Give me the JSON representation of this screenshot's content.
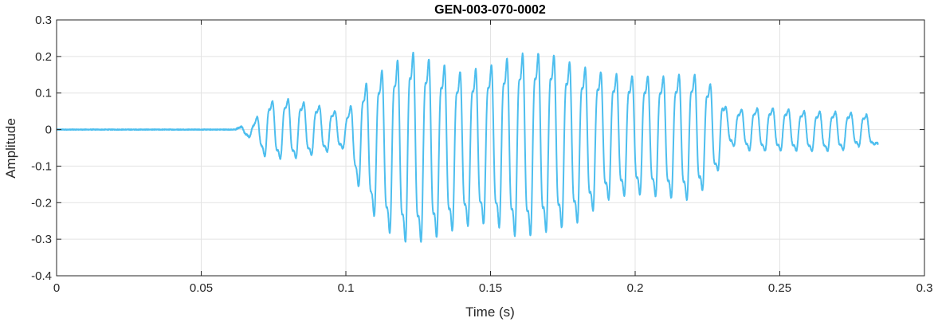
{
  "chart_data": {
    "type": "line",
    "title": "GEN-003-070-0002",
    "xlabel": "Time (s)",
    "ylabel": "Amplitude",
    "xlim": [
      0,
      0.3
    ],
    "ylim": [
      -0.4,
      0.3
    ],
    "xticks": [
      0,
      0.05,
      0.1,
      0.15,
      0.2,
      0.25,
      0.3
    ],
    "xtick_labels": [
      "0",
      "0.05",
      "0.1",
      "0.15",
      "0.2",
      "0.25",
      "0.3"
    ],
    "yticks": [
      -0.4,
      -0.3,
      -0.2,
      -0.1,
      0,
      0.1,
      0.2,
      0.3
    ],
    "ytick_labels": [
      "-0.4",
      "-0.3",
      "-0.2",
      "-0.1",
      "0",
      "0.1",
      "0.2",
      "0.3"
    ],
    "grid": true,
    "line_color": "#4DBEEE",
    "signal": {
      "start_time": 0,
      "end_time": 0.284,
      "onset_time": 0.062,
      "fundamental_hz": 185,
      "envelope": [
        {
          "t": 0.062,
          "pos": 0.005,
          "neg": -0.005
        },
        {
          "t": 0.068,
          "pos": 0.02,
          "neg": -0.03
        },
        {
          "t": 0.072,
          "pos": 0.09,
          "neg": -0.09
        },
        {
          "t": 0.08,
          "pos": 0.1,
          "neg": -0.1
        },
        {
          "t": 0.09,
          "pos": 0.08,
          "neg": -0.08
        },
        {
          "t": 0.1,
          "pos": 0.05,
          "neg": -0.06
        },
        {
          "t": 0.105,
          "pos": 0.14,
          "neg": -0.2
        },
        {
          "t": 0.11,
          "pos": 0.19,
          "neg": -0.28
        },
        {
          "t": 0.115,
          "pos": 0.22,
          "neg": -0.33
        },
        {
          "t": 0.122,
          "pos": 0.27,
          "neg": -0.37
        },
        {
          "t": 0.13,
          "pos": 0.24,
          "neg": -0.35
        },
        {
          "t": 0.14,
          "pos": 0.2,
          "neg": -0.31
        },
        {
          "t": 0.15,
          "pos": 0.22,
          "neg": -0.3
        },
        {
          "t": 0.16,
          "pos": 0.26,
          "neg": -0.35
        },
        {
          "t": 0.17,
          "pos": 0.26,
          "neg": -0.33
        },
        {
          "t": 0.18,
          "pos": 0.22,
          "neg": -0.3
        },
        {
          "t": 0.19,
          "pos": 0.19,
          "neg": -0.23
        },
        {
          "t": 0.2,
          "pos": 0.18,
          "neg": -0.21
        },
        {
          "t": 0.21,
          "pos": 0.18,
          "neg": -0.22
        },
        {
          "t": 0.22,
          "pos": 0.19,
          "neg": -0.23
        },
        {
          "t": 0.228,
          "pos": 0.14,
          "neg": -0.15
        },
        {
          "t": 0.232,
          "pos": 0.06,
          "neg": -0.05
        },
        {
          "t": 0.24,
          "pos": 0.07,
          "neg": -0.07
        },
        {
          "t": 0.25,
          "pos": 0.07,
          "neg": -0.07
        },
        {
          "t": 0.26,
          "pos": 0.06,
          "neg": -0.07
        },
        {
          "t": 0.27,
          "pos": 0.06,
          "neg": -0.07
        },
        {
          "t": 0.28,
          "pos": 0.05,
          "neg": -0.05
        },
        {
          "t": 0.284,
          "pos": -0.04,
          "neg": -0.04
        }
      ]
    }
  }
}
